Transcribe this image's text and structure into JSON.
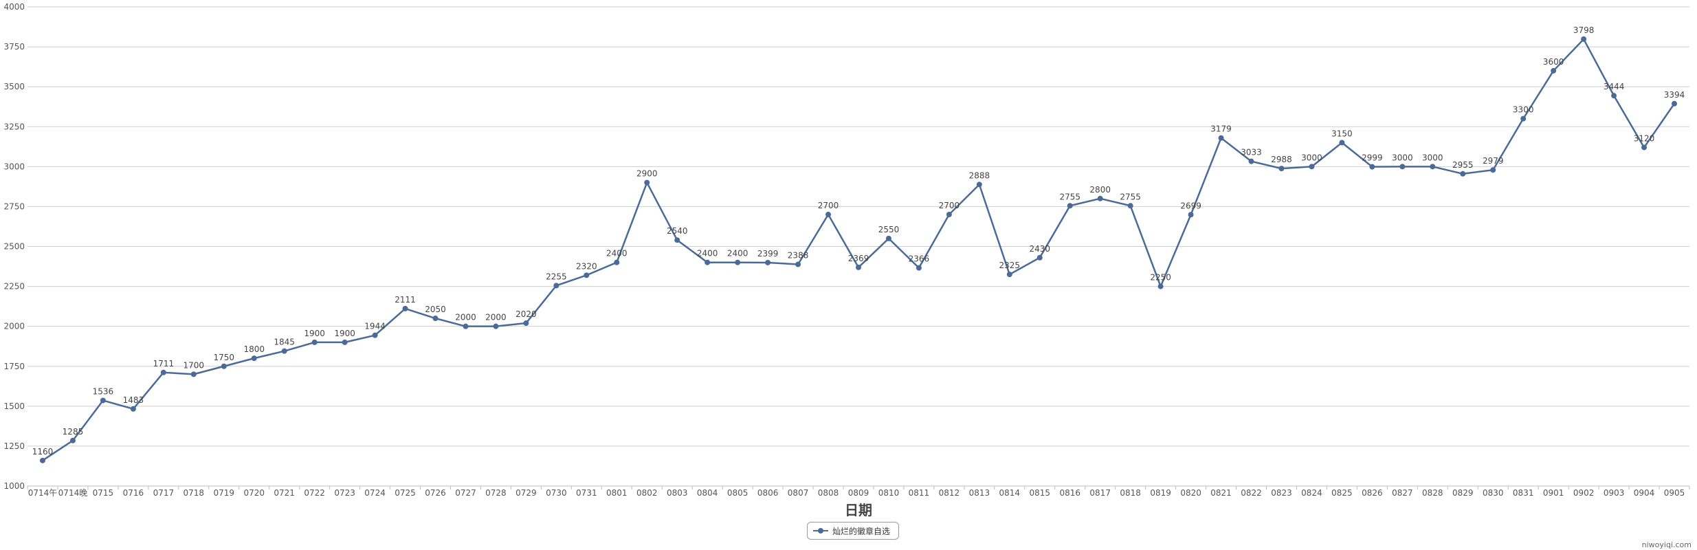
{
  "chart_data": {
    "type": "line",
    "xlabel": "日期",
    "ylabel": "",
    "ylim": [
      1000,
      4000
    ],
    "yticks": [
      1000,
      1250,
      1500,
      1750,
      2000,
      2250,
      2500,
      2750,
      3000,
      3250,
      3500,
      3750,
      4000
    ],
    "grid": true,
    "legend_position": "bottom-center",
    "color": "#4a6a98",
    "categories": [
      "0714午",
      "0714晚",
      "0715",
      "0716",
      "0717",
      "0718",
      "0719",
      "0720",
      "0721",
      "0722",
      "0723",
      "0724",
      "0725",
      "0726",
      "0727",
      "0728",
      "0729",
      "0730",
      "0731",
      "0801",
      "0802",
      "0803",
      "0804",
      "0805",
      "0806",
      "0807",
      "0808",
      "0809",
      "0810",
      "0811",
      "0812",
      "0813",
      "0814",
      "0815",
      "0816",
      "0817",
      "0818",
      "0819",
      "0820",
      "0821",
      "0822",
      "0823",
      "0824",
      "0825",
      "0826",
      "0827",
      "0828",
      "0829",
      "0830",
      "0831",
      "0901",
      "0902",
      "0903",
      "0904",
      "0905"
    ],
    "series": [
      {
        "name": "灿烂的徽章自选",
        "values": [
          1160,
          1285,
          1536,
          1483,
          1711,
          1700,
          1750,
          1800,
          1845,
          1900,
          1900,
          1944,
          2111,
          2050,
          2000,
          2000,
          2020,
          2255,
          2320,
          2400,
          2900,
          2540,
          2400,
          2400,
          2399,
          2388,
          2700,
          2369,
          2550,
          2366,
          2700,
          2888,
          2325,
          2430,
          2755,
          2800,
          2755,
          2250,
          2699,
          3179,
          3033,
          2988,
          3000,
          3150,
          2999,
          3000,
          3000,
          2955,
          2979,
          3300,
          3600,
          3798,
          3444,
          3120,
          3394
        ]
      }
    ]
  },
  "legend_label": "灿烂的徽章自选",
  "credit": "niwoyiqi.com"
}
